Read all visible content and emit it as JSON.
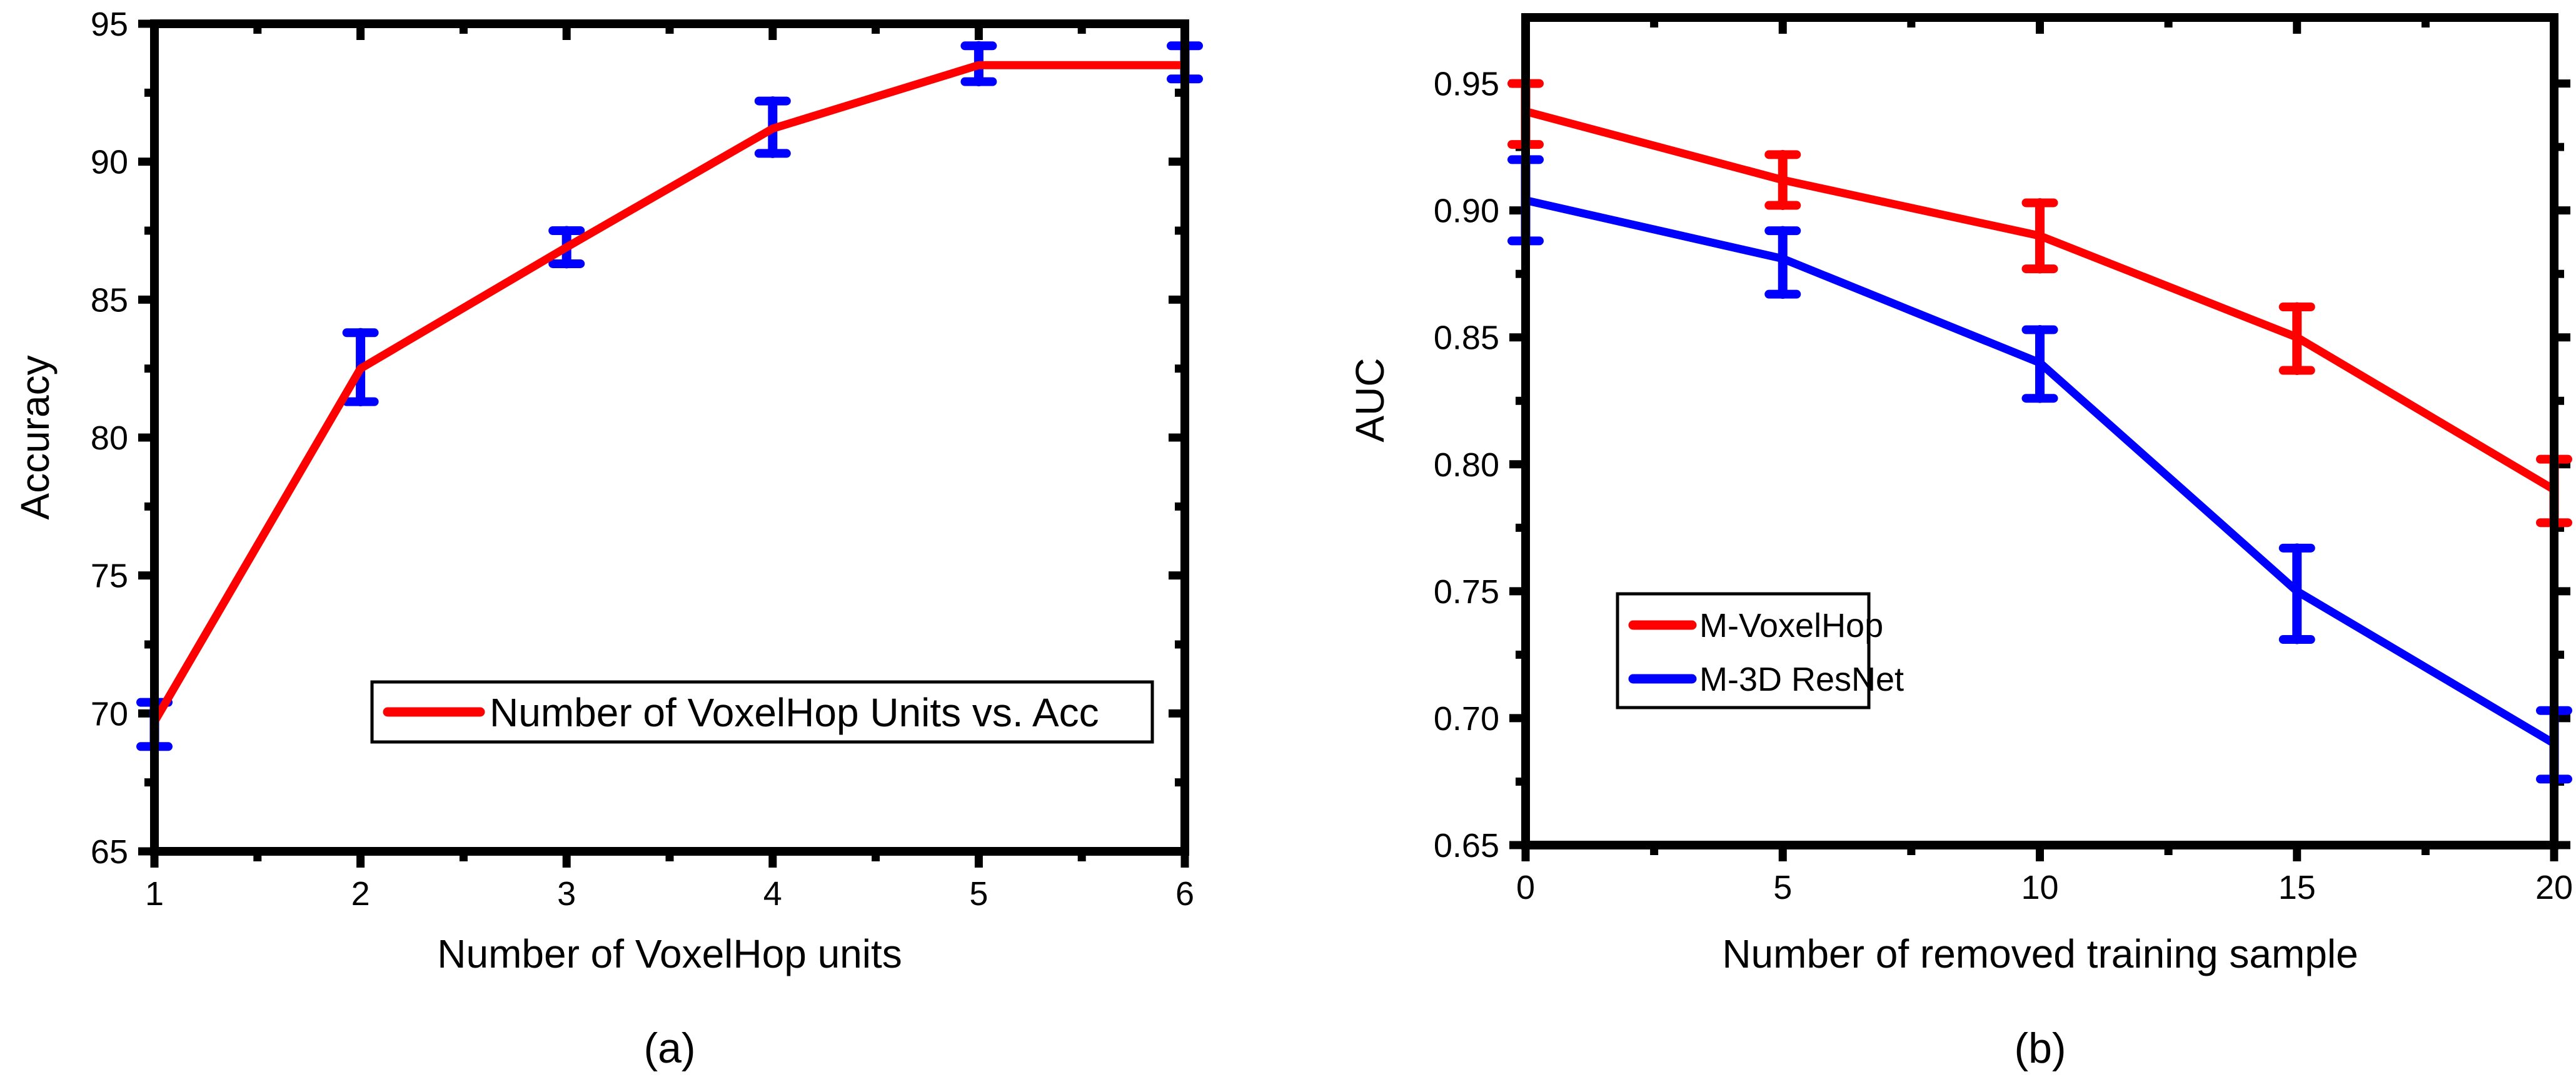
{
  "figure": {
    "background_color": "#ffffff",
    "axis_color": "#000000",
    "panels": [
      {
        "caption": "(a)",
        "xlabel": "Number of VoxelHop units",
        "ylabel": "Accuracy",
        "legend": [
          {
            "label": "Number of VoxelHop Units vs. Acc",
            "color": "#ff0000"
          }
        ]
      },
      {
        "caption": "(b)",
        "xlabel": "Number of removed training sample",
        "ylabel": "AUC",
        "legend": [
          {
            "label": "M-VoxelHop",
            "color": "#ff0000"
          },
          {
            "label": "M-3D ResNet",
            "color": "#0000ff"
          }
        ]
      }
    ]
  },
  "chart_data": [
    {
      "type": "line",
      "title": "",
      "xlabel": "Number of VoxelHop units",
      "ylabel": "Accuracy",
      "x": [
        1,
        2,
        3,
        4,
        5,
        6
      ],
      "series": [
        {
          "name": "Number of VoxelHop Units vs. Acc",
          "color": "#ff0000",
          "error_bar_color": "#0000ff",
          "values": [
            69.7,
            82.5,
            86.9,
            91.2,
            93.5,
            93.5
          ],
          "error_low": [
            68.8,
            81.3,
            86.3,
            90.3,
            92.9,
            93.0
          ],
          "error_high": [
            70.4,
            83.8,
            87.5,
            92.2,
            94.2,
            94.2
          ]
        }
      ],
      "xlim": [
        1,
        6
      ],
      "ylim": [
        65,
        95
      ],
      "x_major_ticks": [
        1,
        2,
        3,
        4,
        5,
        6
      ],
      "x_minor_ticks": [
        1.5,
        2.5,
        3.5,
        4.5,
        5.5
      ],
      "y_major_ticks": [
        65,
        70,
        75,
        80,
        85,
        90,
        95
      ],
      "y_minor_ticks": [
        67.5,
        72.5,
        77.5,
        82.5,
        87.5,
        92.5
      ],
      "y_tick_decimals": 0,
      "grid": false,
      "legend_position": "inside-bottom-center"
    },
    {
      "type": "line",
      "title": "",
      "xlabel": "Number of removed training sample",
      "ylabel": "AUC",
      "x": [
        0,
        5,
        10,
        15,
        20
      ],
      "series": [
        {
          "name": "M-VoxelHop",
          "color": "#ff0000",
          "error_bar_color": "#ff0000",
          "values": [
            0.939,
            0.912,
            0.89,
            0.85,
            0.79
          ],
          "error_low": [
            0.926,
            0.902,
            0.877,
            0.837,
            0.777
          ],
          "error_high": [
            0.95,
            0.922,
            0.903,
            0.862,
            0.802
          ]
        },
        {
          "name": "M-3D ResNet",
          "color": "#0000ff",
          "error_bar_color": "#0000ff",
          "values": [
            0.904,
            0.881,
            0.84,
            0.75,
            0.69
          ],
          "error_low": [
            0.888,
            0.867,
            0.826,
            0.731,
            0.676
          ],
          "error_high": [
            0.92,
            0.892,
            0.853,
            0.767,
            0.703
          ]
        }
      ],
      "xlim": [
        0,
        20
      ],
      "ylim": [
        0.65,
        0.976
      ],
      "x_major_ticks": [
        0,
        5,
        10,
        15,
        20
      ],
      "x_minor_ticks": [
        2.5,
        7.5,
        12.5,
        17.5
      ],
      "y_major_ticks": [
        0.95,
        0.9,
        0.85,
        0.8,
        0.75,
        0.7,
        0.65
      ],
      "y_minor_ticks": [
        0.925,
        0.875,
        0.825,
        0.775,
        0.725,
        0.675
      ],
      "y_tick_decimals": 2,
      "grid": false,
      "legend_position": "inside-middle-left"
    }
  ]
}
